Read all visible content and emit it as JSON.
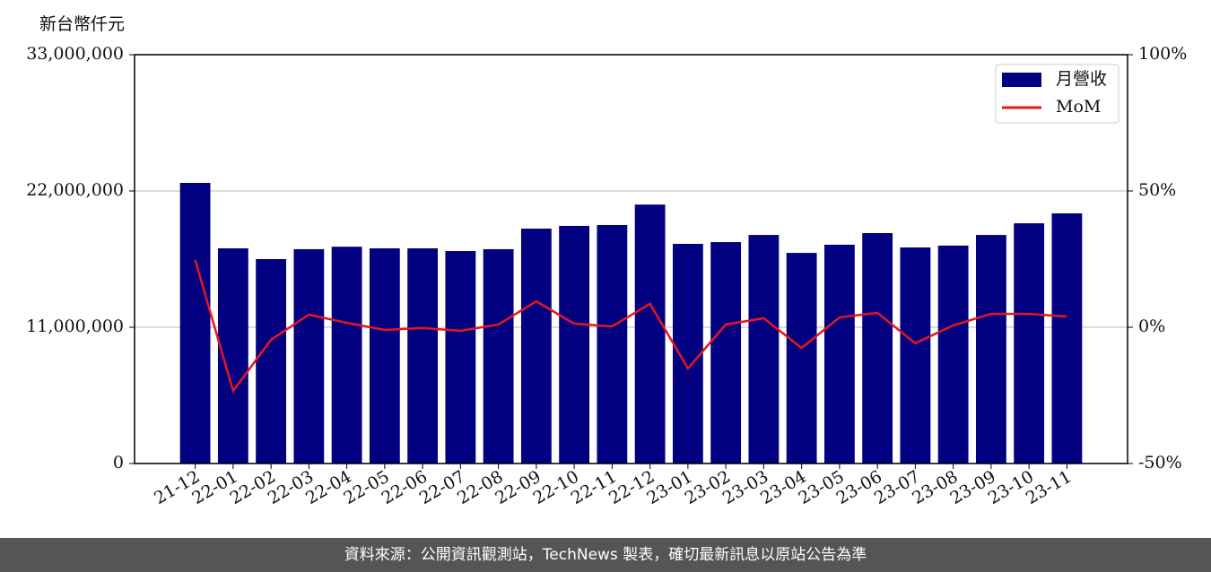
{
  "chart_data": {
    "type": "bar-line",
    "y_label": "新台幣仟元",
    "categories": [
      "21-12",
      "22-01",
      "22-02",
      "22-03",
      "22-04",
      "22-05",
      "22-06",
      "22-07",
      "22-08",
      "22-09",
      "22-10",
      "22-11",
      "22-12",
      "23-01",
      "23-02",
      "23-03",
      "23-04",
      "23-05",
      "23-06",
      "23-07",
      "23-08",
      "23-09",
      "23-10",
      "23-11"
    ],
    "series": [
      {
        "name": "月營收",
        "color": "#000080",
        "values": [
          22650000,
          17370000,
          16500000,
          17300000,
          17500000,
          17370000,
          17370000,
          17150000,
          17300000,
          18960000,
          19180000,
          19250000,
          20900000,
          17730000,
          17870000,
          18450000,
          17000000,
          17660000,
          18600000,
          17440000,
          17590000,
          18450000,
          19390000,
          20190000
        ]
      },
      {
        "name": "MoM",
        "color": "#e8141e",
        "axis": "y2",
        "values": [
          24.7,
          -23.4,
          -4.6,
          4.6,
          1.6,
          -1.0,
          -0.3,
          -1.3,
          1.0,
          9.5,
          1.3,
          0.3,
          8.6,
          -15.1,
          1.0,
          3.3,
          -7.6,
          3.6,
          5.3,
          -5.9,
          0.7,
          4.9,
          4.9,
          3.9
        ]
      }
    ],
    "ylim": [
      0,
      33000000
    ],
    "yticks": [
      0,
      {
        "value": 11000000,
        "label": "11,000,000"
      },
      {
        "value": 22000000,
        "label": "22,000,000"
      },
      {
        "value": 33000000,
        "label": "33,000,000"
      }
    ],
    "y2lim": [
      -50,
      100
    ],
    "y2ticks": [
      {
        "value": -50,
        "label": "-50%"
      },
      {
        "value": 0,
        "label": "0%"
      },
      {
        "value": 50,
        "label": "50%"
      },
      {
        "value": 100,
        "label": "100%"
      }
    ],
    "grid": true,
    "legend": "upper right",
    "footer": "資料來源：公開資訊觀測站，TechNews 製表，確切最新訊息以原站公告為準"
  }
}
